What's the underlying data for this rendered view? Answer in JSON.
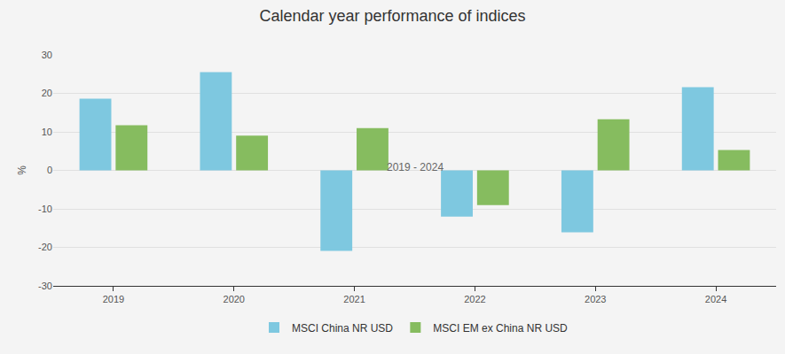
{
  "chart_data": {
    "type": "bar",
    "title": "Calendar year performance of indices",
    "subtitle": "2019 - 2024",
    "y_label": "%",
    "categories": [
      "2019",
      "2020",
      "2021",
      "2022",
      "2023",
      "2024"
    ],
    "series": [
      {
        "name": "MSCI China NR USD",
        "color": "#7ec8e0",
        "values": [
          18.6,
          25.5,
          -20.9,
          -12.0,
          -16.1,
          21.6
        ]
      },
      {
        "name": "MSCI EM ex China NR USD",
        "color": "#86bc5f",
        "values": [
          11.7,
          9.0,
          11.0,
          -9.0,
          13.3,
          5.3
        ]
      }
    ],
    "ylim": [
      -30,
      30
    ],
    "yticks": [
      -30,
      -20,
      -10,
      0,
      10,
      20,
      30
    ],
    "grid": true,
    "legend": "bottom"
  }
}
